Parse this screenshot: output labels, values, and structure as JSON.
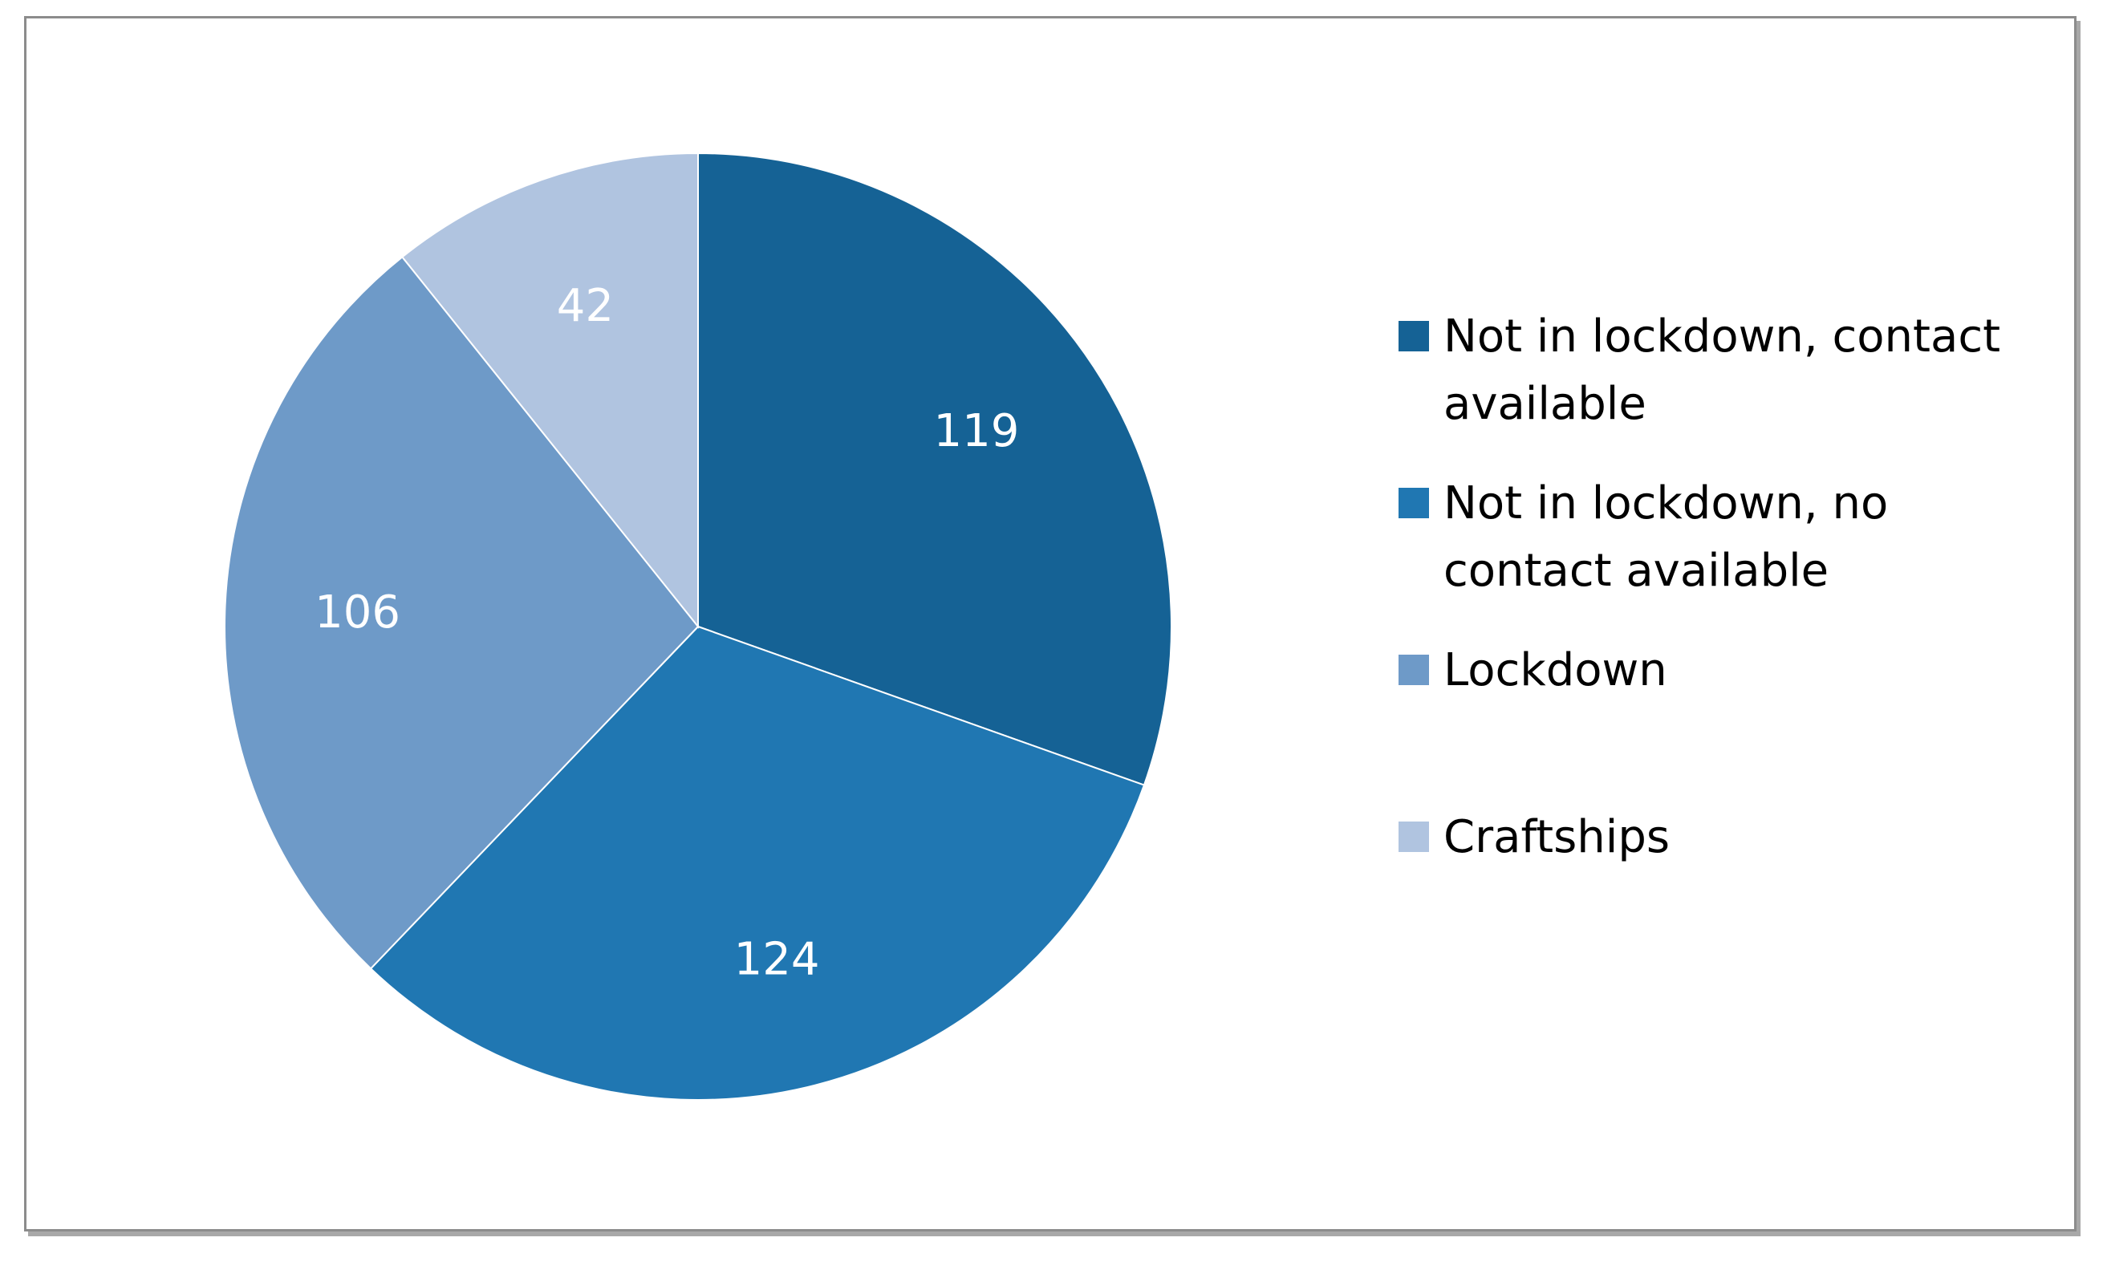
{
  "chart_data": {
    "type": "pie",
    "title": "",
    "start_angle_deg": 0,
    "direction": "clockwise",
    "slices": [
      {
        "label": "Not in lockdown, contact available",
        "value": 119,
        "color": "#156295"
      },
      {
        "label": "Not in lockdown, no contact available",
        "value": 124,
        "color": "#2077b2"
      },
      {
        "label": "Lockdown",
        "value": 106,
        "color": "#6e9ac8"
      },
      {
        "label": "Craftships",
        "value": 42,
        "color": "#b0c4e0"
      }
    ],
    "data_labels": true,
    "legend": "right"
  }
}
